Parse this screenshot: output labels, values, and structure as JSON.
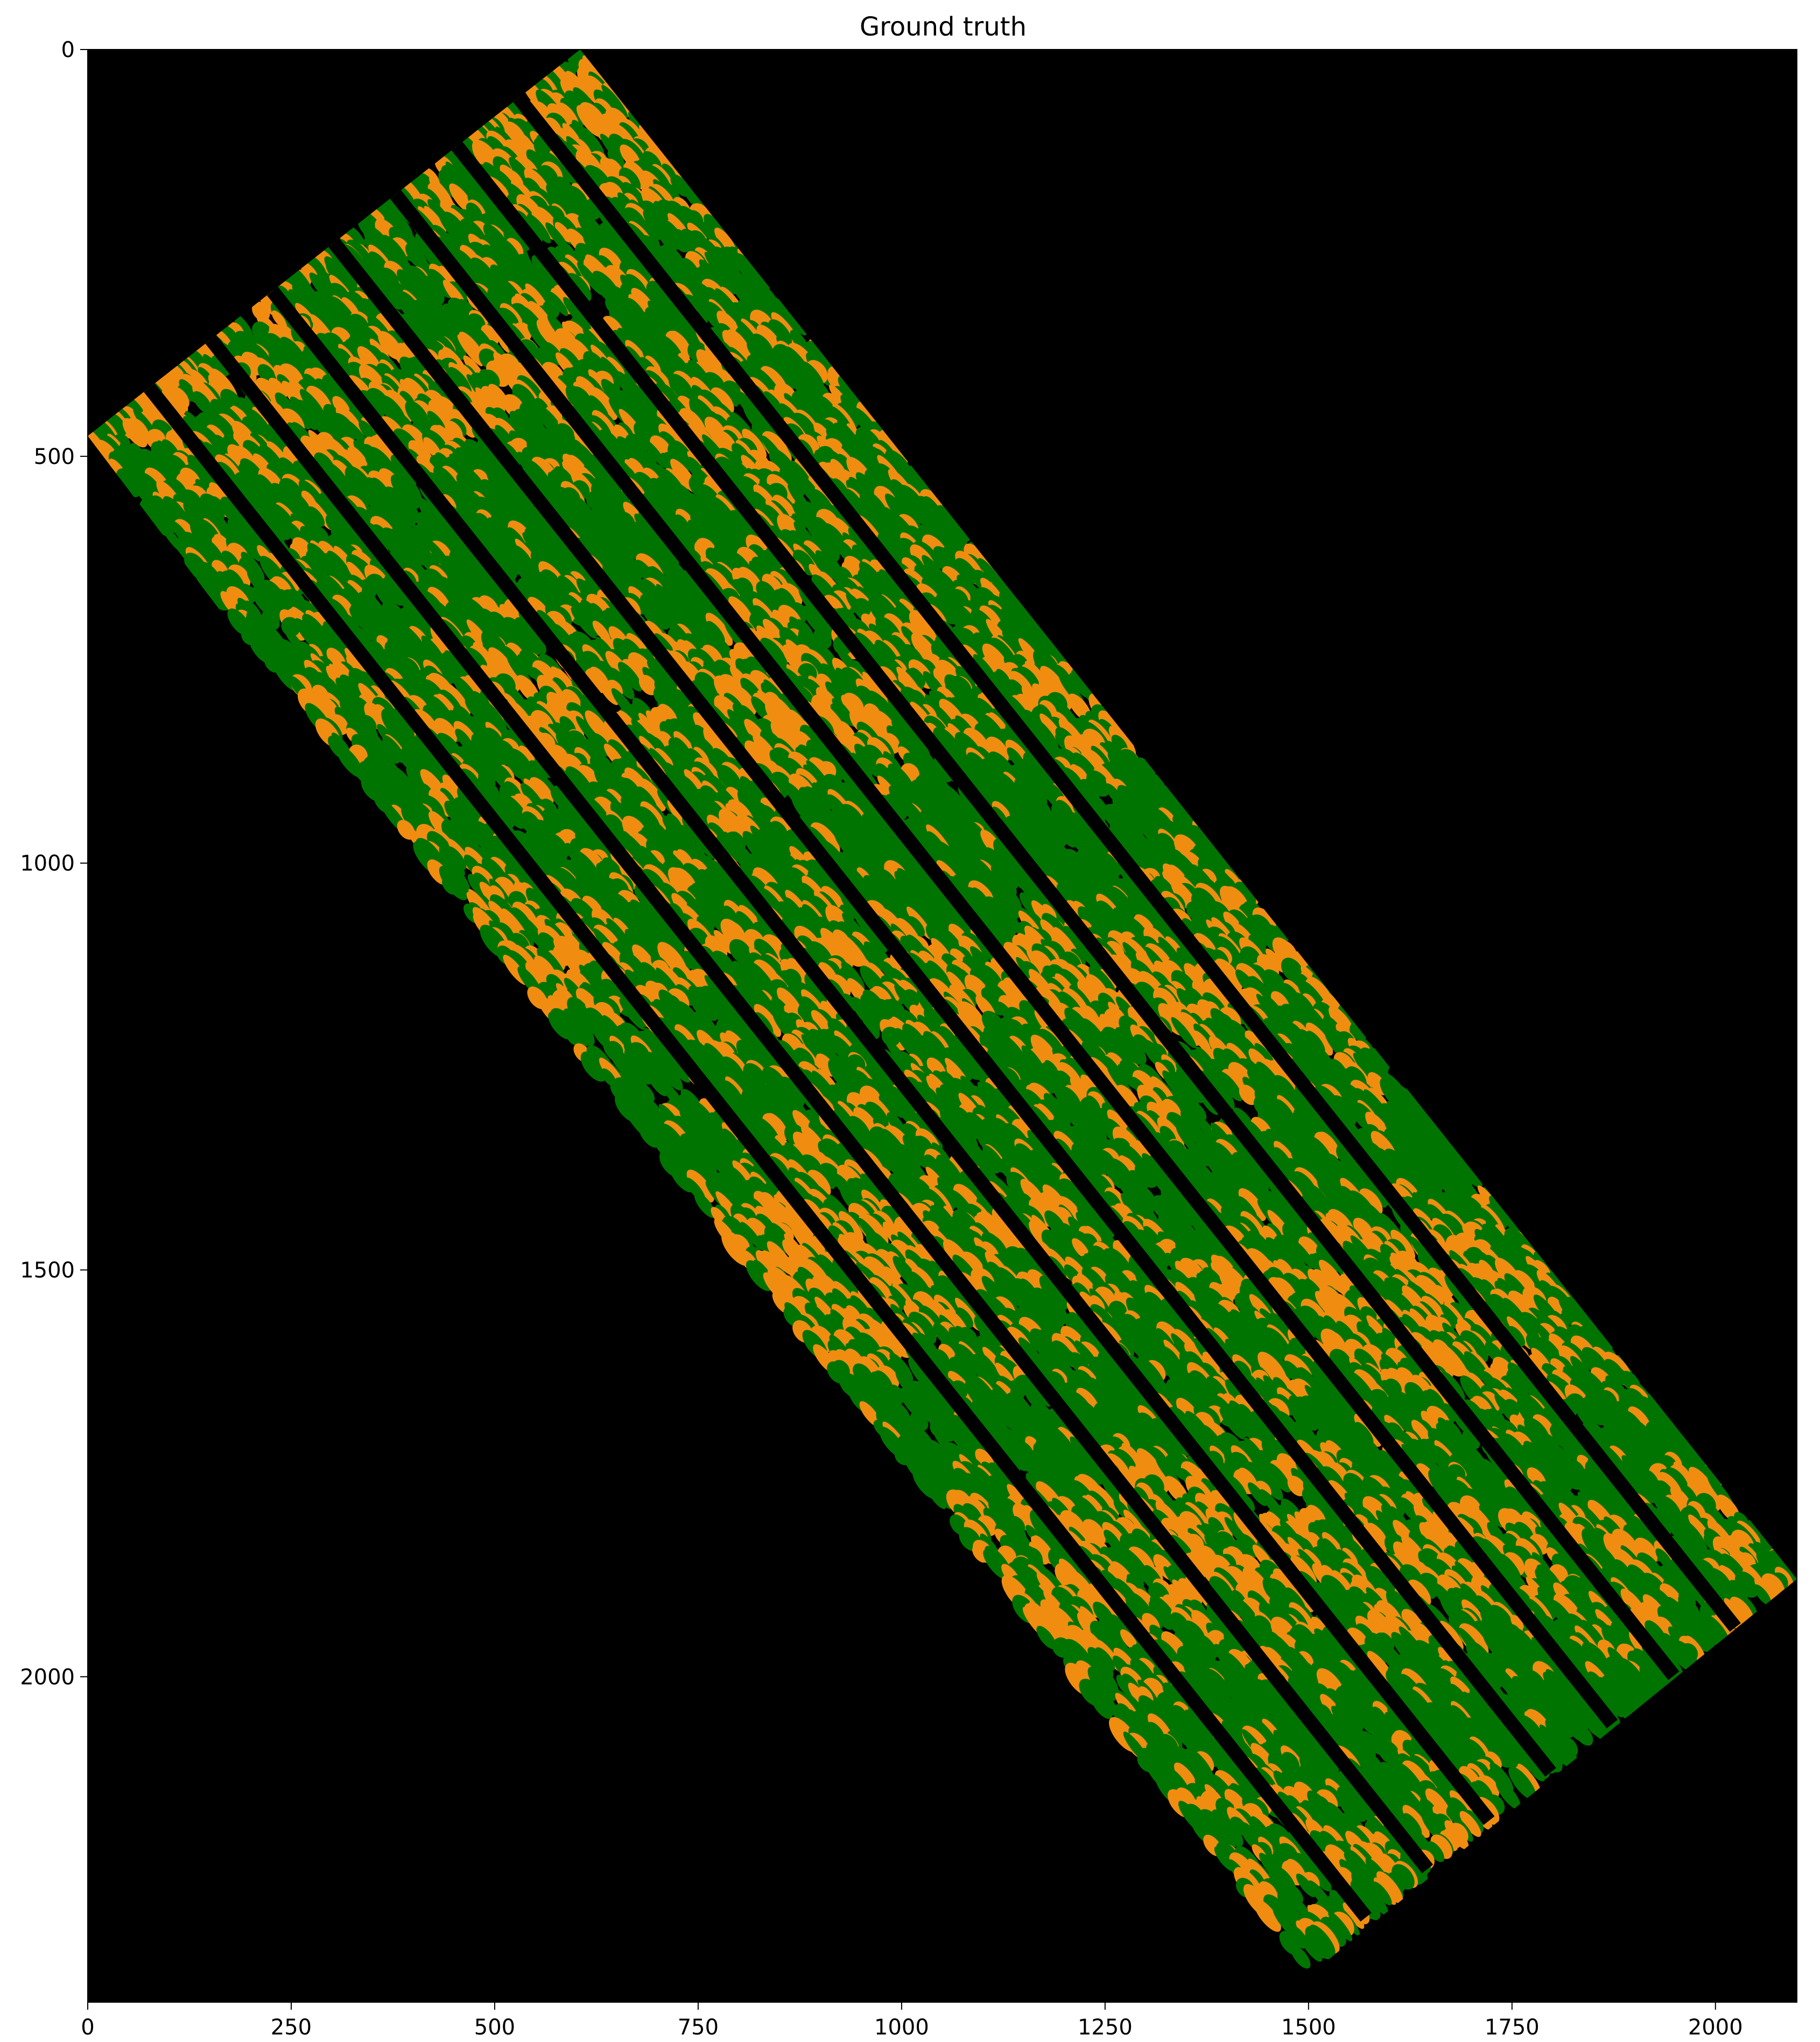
{
  "title": "Ground truth",
  "image": {
    "kind": "segmentation-mask",
    "width_units": 2100,
    "height_units": 2400,
    "background_color": "#000000",
    "class_colors": [
      "#007400",
      "#f08d10"
    ]
  },
  "axes": {
    "x": {
      "range": [
        0,
        2100
      ],
      "ticks": [
        0,
        250,
        500,
        750,
        1000,
        1250,
        1500,
        1750,
        2000
      ],
      "tick_labels": [
        "0",
        "250",
        "500",
        "750",
        "1000",
        "1250",
        "1500",
        "1750",
        "2000"
      ]
    },
    "y": {
      "range": [
        0,
        2400
      ],
      "inverted": true,
      "ticks": [
        0,
        500,
        1000,
        1500,
        2000
      ],
      "tick_labels": [
        "0",
        "500",
        "1000",
        "1500",
        "2000"
      ]
    }
  },
  "mask_region": {
    "corners": [
      [
        605,
        0
      ],
      [
        2100,
        1880
      ],
      [
        1460,
        2400
      ],
      [
        0,
        475
      ]
    ]
  }
}
